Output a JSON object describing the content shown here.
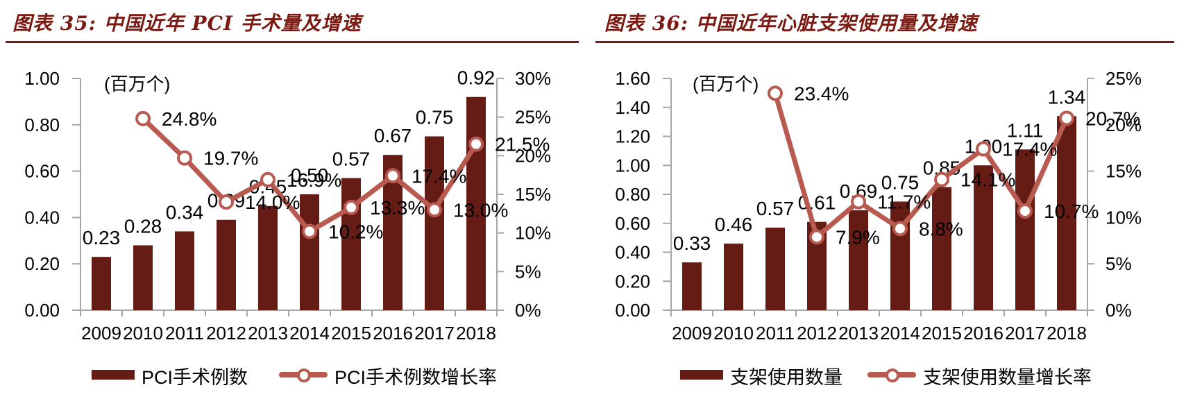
{
  "page": {
    "background": "#ffffff"
  },
  "colors": {
    "bar": "#641c14",
    "line": "#b85a50",
    "marker_fill": "#ffffff",
    "title": "#7a1a12",
    "axis": "#a6a6a6",
    "text": "#000000"
  },
  "charts": [
    {
      "title": "图表 35:  中国近年 PCI 手术量及增速",
      "unit_label": "(百万个)",
      "legend": [
        {
          "type": "bar",
          "label": "PCI手术例数"
        },
        {
          "type": "line",
          "label": "PCI手术例数增长率"
        }
      ],
      "chart_data": {
        "type": "bar+line",
        "categories": [
          "2009",
          "2010",
          "2011",
          "2012",
          "2013",
          "2014",
          "2015",
          "2016",
          "2017",
          "2018"
        ],
        "series": [
          {
            "name": "PCI手术例数",
            "type": "bar",
            "axis": "left",
            "values": [
              0.23,
              0.28,
              0.34,
              0.39,
              0.45,
              0.5,
              0.57,
              0.67,
              0.75,
              0.92
            ],
            "labels": [
              "0.23",
              "0.28",
              "0.34",
              "0.39",
              "0.45",
              "0.50",
              "0.57",
              "0.67",
              "0.75",
              "0.92"
            ]
          },
          {
            "name": "PCI手术例数增长率",
            "type": "line",
            "axis": "right",
            "values": [
              null,
              24.8,
              19.7,
              14.0,
              16.9,
              10.2,
              13.3,
              17.4,
              13.0,
              21.5
            ],
            "labels": [
              null,
              "24.8%",
              "19.7%",
              "14.0%",
              "16.9%",
              "10.2%",
              "13.3%",
              "17.4%",
              "13.0%",
              "21.5%"
            ]
          }
        ],
        "left_axis": {
          "min": 0,
          "max": 1.0,
          "step": 0.2,
          "tick_labels": [
            "0.00",
            "0.20",
            "0.40",
            "0.60",
            "0.80",
            "1.00"
          ]
        },
        "right_axis": {
          "min": 0,
          "max": 30,
          "step": 5,
          "tick_labels": [
            "0%",
            "5%",
            "10%",
            "15%",
            "20%",
            "25%",
            "30%"
          ]
        },
        "grid": false,
        "legend_position": "bottom"
      }
    },
    {
      "title": "图表 36:  中国近年心脏支架使用量及增速",
      "unit_label": "(百万个)",
      "legend": [
        {
          "type": "bar",
          "label": "支架使用数量"
        },
        {
          "type": "line",
          "label": "支架使用数量增长率"
        }
      ],
      "chart_data": {
        "type": "bar+line",
        "categories": [
          "2009",
          "2010",
          "2011",
          "2012",
          "2013",
          "2014",
          "2015",
          "2016",
          "2017",
          "2018"
        ],
        "series": [
          {
            "name": "支架使用数量",
            "type": "bar",
            "axis": "left",
            "values": [
              0.33,
              0.46,
              0.57,
              0.61,
              0.69,
              0.75,
              0.85,
              1.0,
              1.11,
              1.34
            ],
            "labels": [
              "0.33",
              "0.46",
              "0.57",
              "0.61",
              "0.69",
              "0.75",
              "0.85",
              "1.00",
              "1.11",
              "1.34"
            ]
          },
          {
            "name": "支架使用数量增长率",
            "type": "line",
            "axis": "right",
            "values": [
              null,
              null,
              23.4,
              7.9,
              11.7,
              8.8,
              14.1,
              17.4,
              10.7,
              20.7
            ],
            "labels": [
              null,
              null,
              "23.4%",
              "7.9%",
              "11.7%",
              "8.8%",
              "14.1%",
              "17.4%",
              "10.7%",
              "20.7%"
            ]
          }
        ],
        "left_axis": {
          "min": 0,
          "max": 1.6,
          "step": 0.2,
          "tick_labels": [
            "0.00",
            "0.20",
            "0.40",
            "0.60",
            "0.80",
            "1.00",
            "1.20",
            "1.40",
            "1.60"
          ]
        },
        "right_axis": {
          "min": 0,
          "max": 25,
          "step": 5,
          "tick_labels": [
            "0%",
            "5%",
            "10%",
            "15%",
            "20%",
            "25%"
          ]
        },
        "grid": false,
        "legend_position": "bottom"
      }
    }
  ]
}
